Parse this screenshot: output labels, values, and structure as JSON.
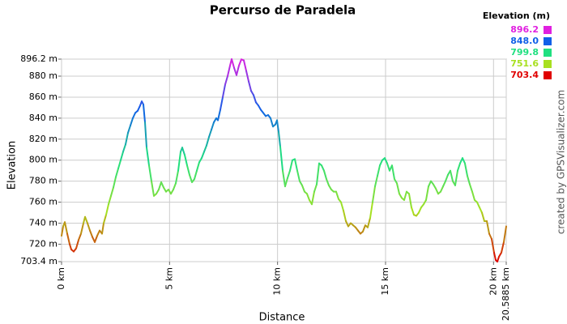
{
  "chart_data": {
    "type": "line",
    "title": "Percurso de Paradela",
    "x_label": "Distance",
    "y_label": "Elevation",
    "credit": "created by GPSVisualizer.com",
    "legend_title": "Elevation (m)",
    "color_scale": [
      {
        "value": 896.2,
        "color": "#e020e0"
      },
      {
        "value": 848,
        "label": "848.0",
        "color": "#1060e8"
      },
      {
        "value": 799.8,
        "color": "#20e080"
      },
      {
        "value": 751.6,
        "color": "#a8e020"
      },
      {
        "value": 703.4,
        "color": "#e00000"
      }
    ],
    "xlim": [
      0,
      20.5885
    ],
    "ylim": [
      703.4,
      896.2
    ],
    "grid": true,
    "xticks": [
      {
        "value": 0,
        "label": "0 km"
      },
      {
        "value": 5,
        "label": "5 km"
      },
      {
        "value": 10,
        "label": "10 km"
      },
      {
        "value": 15,
        "label": "15 km"
      },
      {
        "value": 20,
        "label": "20 km"
      },
      {
        "value": 20.5885,
        "label": "20.5885 km"
      }
    ],
    "yticks": [
      {
        "value": 896.2,
        "label": "896.2 m"
      },
      {
        "value": 880,
        "label": "880 m"
      },
      {
        "value": 860,
        "label": "860 m"
      },
      {
        "value": 840,
        "label": "840 m"
      },
      {
        "value": 820,
        "label": "820 m"
      },
      {
        "value": 800,
        "label": "800 m"
      },
      {
        "value": 780,
        "label": "780 m"
      },
      {
        "value": 760,
        "label": "760 m"
      },
      {
        "value": 740,
        "label": "740 m"
      },
      {
        "value": 720,
        "label": "720 m"
      },
      {
        "value": 703.4,
        "label": "703.4 m"
      }
    ],
    "x": [
      0,
      0.075,
      0.15,
      0.263,
      0.375,
      0.45,
      0.563,
      0.675,
      0.788,
      0.9,
      1.013,
      1.088,
      1.2,
      1.313,
      1.425,
      1.538,
      1.65,
      1.763,
      1.875,
      1.95,
      2.063,
      2.175,
      2.288,
      2.4,
      2.513,
      2.625,
      2.738,
      2.85,
      2.963,
      3.075,
      3.188,
      3.3,
      3.413,
      3.525,
      3.638,
      3.713,
      3.788,
      3.863,
      3.938,
      4.05,
      4.163,
      4.275,
      4.388,
      4.5,
      4.613,
      4.725,
      4.838,
      4.95,
      5.063,
      5.175,
      5.288,
      5.4,
      5.513,
      5.588,
      5.7,
      5.813,
      5.925,
      6.038,
      6.15,
      6.263,
      6.375,
      6.488,
      6.6,
      6.713,
      6.825,
      6.938,
      7.05,
      7.163,
      7.238,
      7.35,
      7.463,
      7.575,
      7.688,
      7.8,
      7.875,
      7.988,
      8.1,
      8.213,
      8.325,
      8.438,
      8.55,
      8.663,
      8.775,
      8.888,
      9,
      9.113,
      9.225,
      9.338,
      9.45,
      9.563,
      9.675,
      9.788,
      9.9,
      9.975,
      10.05,
      10.125,
      10.238,
      10.35,
      10.463,
      10.575,
      10.688,
      10.8,
      10.913,
      11.025,
      11.138,
      11.25,
      11.363,
      11.475,
      11.588,
      11.7,
      11.813,
      11.925,
      12.038,
      12.15,
      12.263,
      12.375,
      12.488,
      12.6,
      12.713,
      12.825,
      12.938,
      13.05,
      13.163,
      13.275,
      13.388,
      13.5,
      13.613,
      13.725,
      13.838,
      13.95,
      14.063,
      14.175,
      14.288,
      14.4,
      14.513,
      14.625,
      14.738,
      14.85,
      14.963,
      15.075,
      15.188,
      15.3,
      15.413,
      15.525,
      15.638,
      15.75,
      15.863,
      15.975,
      16.088,
      16.2,
      16.313,
      16.425,
      16.538,
      16.65,
      16.763,
      16.875,
      16.988,
      17.1,
      17.213,
      17.325,
      17.438,
      17.55,
      17.663,
      17.775,
      17.888,
      18,
      18.113,
      18.225,
      18.338,
      18.45,
      18.563,
      18.675,
      18.788,
      18.9,
      19.013,
      19.125,
      19.238,
      19.35,
      19.463,
      19.575,
      19.688,
      19.8,
      19.913,
      20.025,
      20.1,
      20.175,
      20.25,
      20.363,
      20.475,
      20.5885
    ],
    "values": [
      728,
      737,
      741,
      730,
      720,
      715,
      713,
      716,
      724,
      730,
      740,
      746,
      740,
      733,
      727,
      722,
      728,
      733,
      730,
      740,
      748,
      758,
      766,
      774,
      784,
      792,
      800,
      808,
      815,
      826,
      833,
      840,
      845,
      847,
      852,
      856,
      853,
      836,
      812,
      795,
      780,
      766,
      768,
      772,
      779,
      774,
      770,
      772,
      768,
      772,
      778,
      790,
      808,
      812,
      805,
      795,
      786,
      779,
      782,
      790,
      798,
      802,
      808,
      814,
      822,
      829,
      836,
      840,
      838,
      848,
      860,
      872,
      880,
      890,
      896.2,
      888,
      881,
      890,
      896,
      895,
      885,
      875,
      866,
      862,
      855,
      852,
      848,
      845,
      842,
      843,
      840,
      832,
      834,
      838,
      827,
      813,
      790,
      775,
      783,
      790,
      800,
      801,
      790,
      780,
      776,
      770,
      768,
      762,
      758,
      770,
      777,
      797,
      795,
      790,
      782,
      776,
      772,
      770,
      770,
      763,
      760,
      752,
      742,
      737,
      740,
      738,
      736,
      733,
      730,
      732,
      738,
      736,
      745,
      760,
      775,
      785,
      795,
      800,
      802,
      797,
      790,
      795,
      782,
      778,
      768,
      764,
      762,
      770,
      768,
      755,
      748,
      747,
      750,
      755,
      758,
      762,
      775,
      780,
      777,
      773,
      768,
      770,
      775,
      780,
      786,
      790,
      780,
      776,
      790,
      797,
      802,
      797,
      785,
      777,
      770,
      762,
      760,
      755,
      750,
      742,
      742,
      730,
      725,
      712,
      705,
      703.4,
      708,
      712,
      722,
      737
    ]
  }
}
